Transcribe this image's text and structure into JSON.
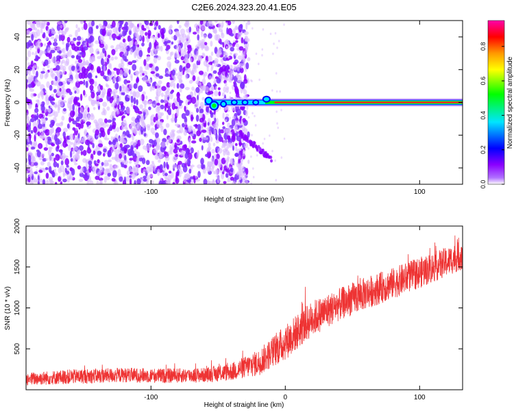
{
  "title": "C2E6.2024.323.20.41.E05",
  "chart_data": [
    {
      "type": "heatmap",
      "xlabel": "Height of straight line (km)",
      "ylabel": "Frequency (Hz)",
      "xlim": [
        -193,
        132
      ],
      "ylim": [
        -50,
        50
      ],
      "x_ticks": [
        -100,
        100
      ],
      "y_ticks": [
        -40,
        -20,
        0,
        20,
        40
      ],
      "grid": false,
      "colorbar": {
        "label": "Normalized spectral amplitude",
        "range": [
          0,
          0.95
        ],
        "ticks": [
          0,
          0.2,
          0.4,
          0.6,
          0.8
        ],
        "colors": [
          "#ffffff",
          "#8a00ff",
          "#0000ff",
          "#00e5ff",
          "#00ff00",
          "#ffff00",
          "#ff9900",
          "#ff0000",
          "#ff00aa"
        ]
      },
      "features": [
        {
          "kind": "noise",
          "x": [
            -193,
            -35
          ],
          "y": [
            -50,
            50
          ],
          "amplitude": 0.08
        },
        {
          "kind": "carrier",
          "x": [
            -60,
            132
          ],
          "frequency_hz": 0,
          "amplitude": 0.9
        },
        {
          "kind": "sidebranch",
          "x": [
            -35,
            -10
          ],
          "y": [
            -18,
            -35
          ],
          "amplitude": 0.08
        }
      ]
    },
    {
      "type": "line",
      "xlabel": "Height of straight line (km)",
      "ylabel": "SNR (10 * v/v)",
      "xlim": [
        -193,
        132
      ],
      "ylim": [
        0,
        2000
      ],
      "x_ticks": [
        -100,
        0,
        100
      ],
      "y_ticks": [
        500,
        1000,
        1500,
        2000
      ],
      "grid": false,
      "series": [
        {
          "color": "#ee3333",
          "x": [
            -193,
            -160,
            -120,
            -90,
            -60,
            -40,
            -20,
            0,
            20,
            40,
            60,
            80,
            100,
            120,
            132
          ],
          "y_center": [
            130,
            160,
            180,
            170,
            180,
            220,
            330,
            580,
            870,
            1040,
            1180,
            1300,
            1430,
            1560,
            1650
          ],
          "y_halfwidth": [
            80,
            90,
            90,
            90,
            90,
            110,
            160,
            220,
            220,
            200,
            200,
            190,
            190,
            180,
            180
          ]
        }
      ]
    }
  ]
}
